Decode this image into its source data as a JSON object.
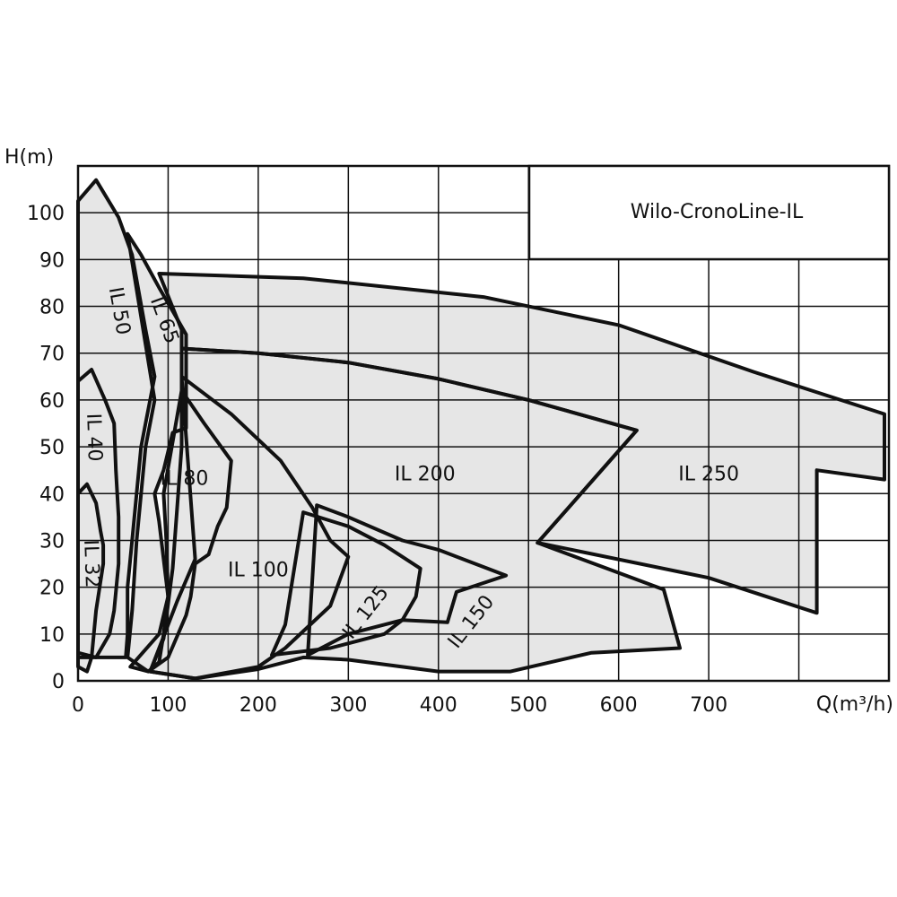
{
  "chart_data": {
    "type": "area",
    "title": "Wilo-CronoLine-IL",
    "xlabel": "Q(m³/h)",
    "ylabel": "H(m)",
    "xlim": [
      0,
      900
    ],
    "ylim": [
      0,
      110
    ],
    "grid": true,
    "x_ticks": [
      {
        "value": 0,
        "label": "0"
      },
      {
        "value": 100,
        "label": "100"
      },
      {
        "value": 200,
        "label": "200"
      },
      {
        "value": 300,
        "label": "300"
      },
      {
        "value": 400,
        "label": "400"
      },
      {
        "value": 500,
        "label": "500"
      },
      {
        "value": 600,
        "label": "600"
      },
      {
        "value": 700,
        "label": "700"
      }
    ],
    "y_ticks": [
      {
        "value": 0,
        "label": "0"
      },
      {
        "value": 10,
        "label": "10"
      },
      {
        "value": 20,
        "label": "20"
      },
      {
        "value": 30,
        "label": "30"
      },
      {
        "value": 40,
        "label": "40"
      },
      {
        "value": 50,
        "label": "50"
      },
      {
        "value": 60,
        "label": "60"
      },
      {
        "value": 70,
        "label": "70"
      },
      {
        "value": 80,
        "label": "80"
      },
      {
        "value": 90,
        "label": "90"
      },
      {
        "value": 100,
        "label": "100"
      }
    ],
    "fill_color": "#e6e6e6",
    "line_color": "#111111",
    "series": [
      {
        "name": "IL 250",
        "points": [
          [
            90,
            87
          ],
          [
            250,
            86
          ],
          [
            450,
            82
          ],
          [
            600,
            76
          ],
          [
            750,
            66
          ],
          [
            895,
            57
          ],
          [
            895,
            43
          ],
          [
            820,
            45
          ],
          [
            820,
            14.5
          ],
          [
            700,
            22
          ],
          [
            510,
            29.5
          ],
          [
            620,
            53.5
          ],
          [
            500,
            60
          ],
          [
            400,
            64.5
          ],
          [
            300,
            68
          ],
          [
            200,
            70
          ],
          [
            115,
            71
          ],
          [
            115,
            75
          ],
          [
            90,
            87
          ]
        ],
        "label_pos": [
          700,
          44
        ],
        "label_rotate": 0
      },
      {
        "name": "IL 200",
        "points": [
          [
            115,
            71
          ],
          [
            200,
            70
          ],
          [
            300,
            68
          ],
          [
            400,
            64.5
          ],
          [
            500,
            60
          ],
          [
            620,
            53.5
          ],
          [
            510,
            29.5
          ],
          [
            650,
            19.5
          ],
          [
            668,
            7
          ],
          [
            570,
            6
          ],
          [
            480,
            2
          ],
          [
            400,
            2
          ],
          [
            300,
            4.5
          ],
          [
            250,
            5
          ],
          [
            200,
            2.5
          ],
          [
            130,
            0.5
          ],
          [
            80,
            2
          ],
          [
            95,
            9
          ],
          [
            105,
            24
          ],
          [
            115,
            50
          ],
          [
            115,
            71
          ]
        ],
        "label_pos": [
          385,
          44
        ],
        "label_rotate": 0
      },
      {
        "name": "IL 150",
        "points": [
          [
            265,
            37.5
          ],
          [
            300,
            35
          ],
          [
            360,
            30
          ],
          [
            400,
            28
          ],
          [
            475,
            22.5
          ],
          [
            420,
            19
          ],
          [
            410,
            12.5
          ],
          [
            360,
            13
          ],
          [
            300,
            10
          ],
          [
            255,
            5.5
          ],
          [
            265,
            37.5
          ]
        ],
        "label_pos": [
          437,
          12.5
        ],
        "label_rotate": -52
      },
      {
        "name": "IL 125",
        "points": [
          [
            250,
            36
          ],
          [
            300,
            33
          ],
          [
            340,
            29
          ],
          [
            380,
            24
          ],
          [
            375,
            18
          ],
          [
            360,
            13
          ],
          [
            340,
            10
          ],
          [
            280,
            7
          ],
          [
            215,
            5.5
          ],
          [
            230,
            12
          ],
          [
            250,
            36
          ]
        ],
        "label_pos": [
          320,
          14.5
        ],
        "label_rotate": -52
      },
      {
        "name": "IL 100",
        "points": [
          [
            115,
            65
          ],
          [
            170,
            57
          ],
          [
            225,
            47
          ],
          [
            260,
            37
          ],
          [
            280,
            30
          ],
          [
            300,
            26.5
          ],
          [
            280,
            16
          ],
          [
            230,
            7
          ],
          [
            200,
            3
          ],
          [
            130,
            0.5
          ],
          [
            80,
            2
          ],
          [
            110,
            17
          ],
          [
            130,
            26
          ],
          [
            115,
            65
          ]
        ],
        "label_pos": [
          200,
          23.5
        ],
        "label_rotate": 0
      },
      {
        "name": "IL 80",
        "points": [
          [
            115,
            62
          ],
          [
            140,
            55
          ],
          [
            170,
            47
          ],
          [
            165,
            37
          ],
          [
            155,
            33
          ],
          [
            145,
            27
          ],
          [
            130,
            25
          ],
          [
            125,
            18
          ],
          [
            120,
            14
          ],
          [
            100,
            5
          ],
          [
            78,
            2
          ],
          [
            58,
            3
          ],
          [
            90,
            10
          ],
          [
            100,
            18
          ],
          [
            98,
            30
          ],
          [
            95,
            40
          ],
          [
            115,
            62
          ]
        ],
        "label_pos": [
          118,
          43
        ],
        "label_rotate": 0
      },
      {
        "name": "IL 65",
        "points": [
          [
            55,
            95.5
          ],
          [
            70,
            91
          ],
          [
            90,
            84
          ],
          [
            105,
            79
          ],
          [
            120,
            74
          ],
          [
            120,
            54
          ],
          [
            105,
            53
          ],
          [
            95,
            45
          ],
          [
            85,
            40
          ],
          [
            90,
            34
          ],
          [
            100,
            18
          ],
          [
            95,
            10
          ],
          [
            90,
            4
          ],
          [
            78,
            2
          ],
          [
            55,
            5
          ],
          [
            60,
            15
          ],
          [
            65,
            30
          ],
          [
            75,
            50
          ],
          [
            85,
            60
          ],
          [
            55,
            95.5
          ]
        ],
        "label_pos": [
          95,
          77
        ],
        "label_rotate": 70
      },
      {
        "name": "IL 50",
        "points": [
          [
            0,
            102.5
          ],
          [
            20,
            107
          ],
          [
            45,
            99
          ],
          [
            60,
            91
          ],
          [
            75,
            75
          ],
          [
            85,
            65
          ],
          [
            75,
            55
          ],
          [
            70,
            50
          ],
          [
            65,
            40
          ],
          [
            60,
            30
          ],
          [
            55,
            20
          ],
          [
            55,
            10
          ],
          [
            53,
            5
          ],
          [
            35,
            5
          ],
          [
            20,
            5
          ],
          [
            0,
            6
          ],
          [
            0,
            102.5
          ]
        ],
        "label_pos": [
          45,
          79
        ],
        "label_rotate": 80
      },
      {
        "name": "IL 40",
        "points": [
          [
            0,
            64
          ],
          [
            15,
            66.5
          ],
          [
            30,
            60
          ],
          [
            40,
            55
          ],
          [
            42,
            45
          ],
          [
            45,
            35
          ],
          [
            45,
            25
          ],
          [
            40,
            15
          ],
          [
            35,
            10
          ],
          [
            20,
            5
          ],
          [
            0,
            5
          ],
          [
            0,
            64
          ]
        ],
        "label_pos": [
          17,
          52
        ],
        "label_rotate": 88
      },
      {
        "name": "IL 32",
        "points": [
          [
            0,
            40
          ],
          [
            10,
            42
          ],
          [
            20,
            38
          ],
          [
            25,
            32
          ],
          [
            28,
            29
          ],
          [
            28,
            25
          ],
          [
            20,
            15
          ],
          [
            15,
            5
          ],
          [
            10,
            2
          ],
          [
            0,
            3
          ],
          [
            0,
            40
          ]
        ],
        "label_pos": [
          14,
          25
        ],
        "label_rotate": 88
      }
    ]
  }
}
